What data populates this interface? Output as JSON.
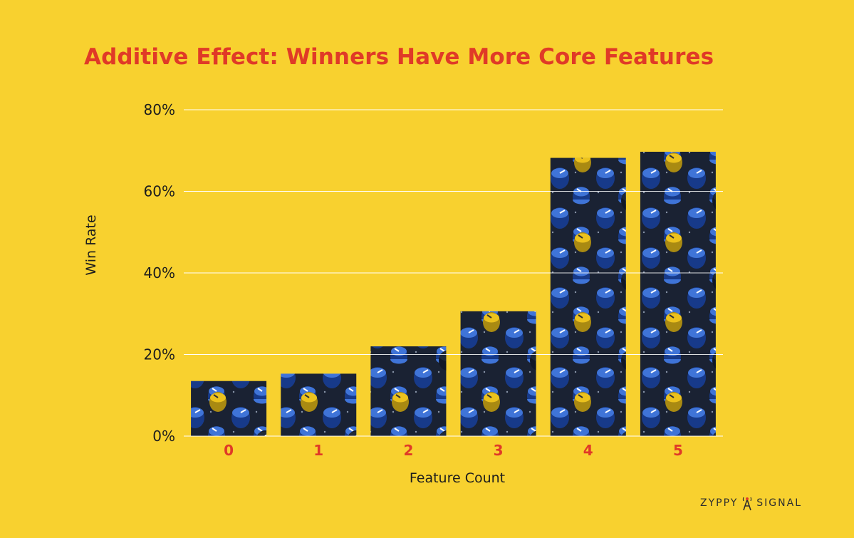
{
  "chart_data": {
    "type": "bar",
    "title": "Additive Effect: Winners Have More Core Features",
    "xlabel": "Feature Count",
    "ylabel": "Win Rate",
    "categories": [
      "0",
      "1",
      "2",
      "3",
      "4",
      "5"
    ],
    "values": [
      13.5,
      15.3,
      22.0,
      30.6,
      68.2,
      69.7
    ],
    "value_unit": "%",
    "ylim": [
      0,
      80
    ],
    "yticks": [
      0,
      20,
      40,
      60,
      80
    ],
    "ytick_labels": [
      "0%",
      "20%",
      "40%",
      "60%",
      "80%"
    ],
    "grid": true,
    "bar_texture": "mixing-console-knobs",
    "colors": {
      "background": "#f8d12f",
      "title": "#e03a27",
      "x_tick": "#e03a27",
      "grid": "#ffffff",
      "knob_blue": "#2f5fc4",
      "knob_yellow": "#ecc21d",
      "board": "#1a2233"
    }
  },
  "logo": {
    "left": "ZYPPY",
    "right": "SIGNAL",
    "icon": "broadcast-tower-icon"
  }
}
